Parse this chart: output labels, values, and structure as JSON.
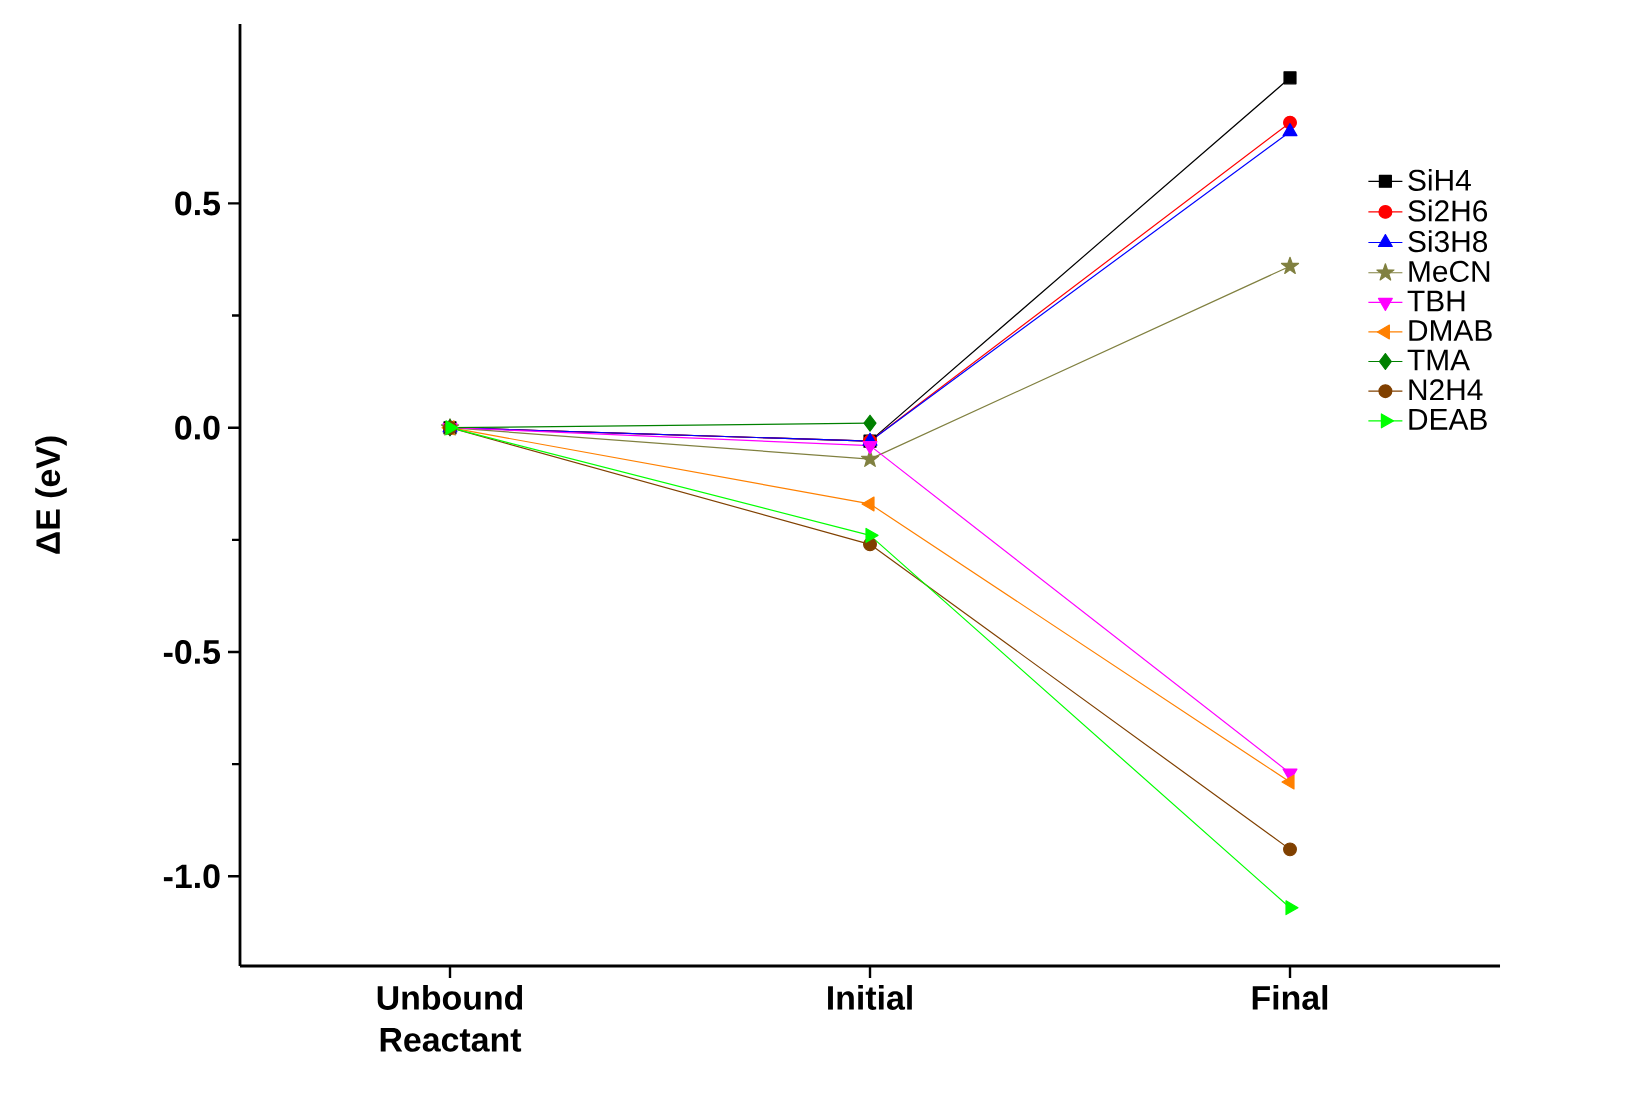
{
  "chart_data": {
    "type": "line",
    "ylabel": "ΔE (eV)",
    "categories": [
      "Unbound Reactant",
      "Initial",
      "Final"
    ],
    "ylim": [
      -1.2,
      0.9
    ],
    "yticks": [
      0.5,
      {
        "value": 0,
        "label": "0.0"
      },
      -0.5,
      {
        "value": -1,
        "label": "-1.0"
      }
    ],
    "legend": "right",
    "series": [
      {
        "name": "SiH4",
        "color": "#000000",
        "marker": "square",
        "values": [
          0,
          -0.03,
          0.78
        ]
      },
      {
        "name": "Si2H6",
        "color": "#ff0000",
        "marker": "circle",
        "values": [
          0,
          -0.03,
          0.68
        ]
      },
      {
        "name": "Si3H8",
        "color": "#0000ff",
        "marker": "triangle",
        "values": [
          0,
          -0.03,
          0.66
        ]
      },
      {
        "name": "MeCN",
        "color": "#808040",
        "marker": "star",
        "values": [
          0,
          -0.07,
          0.36
        ]
      },
      {
        "name": "TBH",
        "color": "#ff00ff",
        "marker": "triangle-down",
        "values": [
          0,
          -0.04,
          -0.77
        ]
      },
      {
        "name": "DMAB",
        "color": "#ff8000",
        "marker": "triangle-left",
        "values": [
          0,
          -0.17,
          -0.79
        ]
      },
      {
        "name": "TMA",
        "color": "#008000",
        "marker": "diamond",
        "values": [
          0,
          0.01,
          null
        ]
      },
      {
        "name": "N2H4",
        "color": "#804000",
        "marker": "circle",
        "values": [
          0,
          -0.26,
          -0.94
        ]
      },
      {
        "name": "DEAB",
        "color": "#00ff00",
        "marker": "triangle-right",
        "values": [
          0,
          -0.24,
          -1.07
        ]
      }
    ]
  }
}
